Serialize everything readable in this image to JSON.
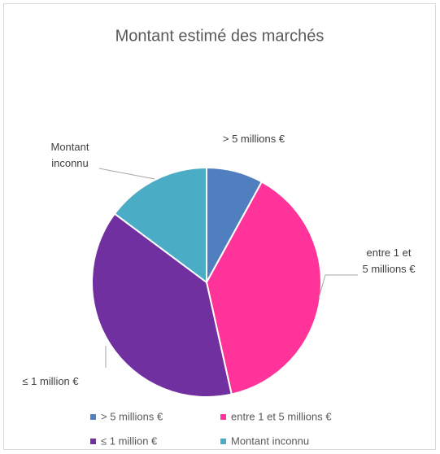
{
  "chart_data": {
    "type": "pie",
    "title": "Montant estimé des marchés",
    "categories": [
      "> 5 millions €",
      "entre 1 et 5 millions €",
      "≤ 1 million €",
      "Montant inconnu"
    ],
    "values": [
      8,
      38.5,
      38.7,
      14.8
    ],
    "colors": [
      "#4f7fbf",
      "#ff3399",
      "#7030a0",
      "#4bacc6"
    ],
    "legend": "bottom"
  }
}
